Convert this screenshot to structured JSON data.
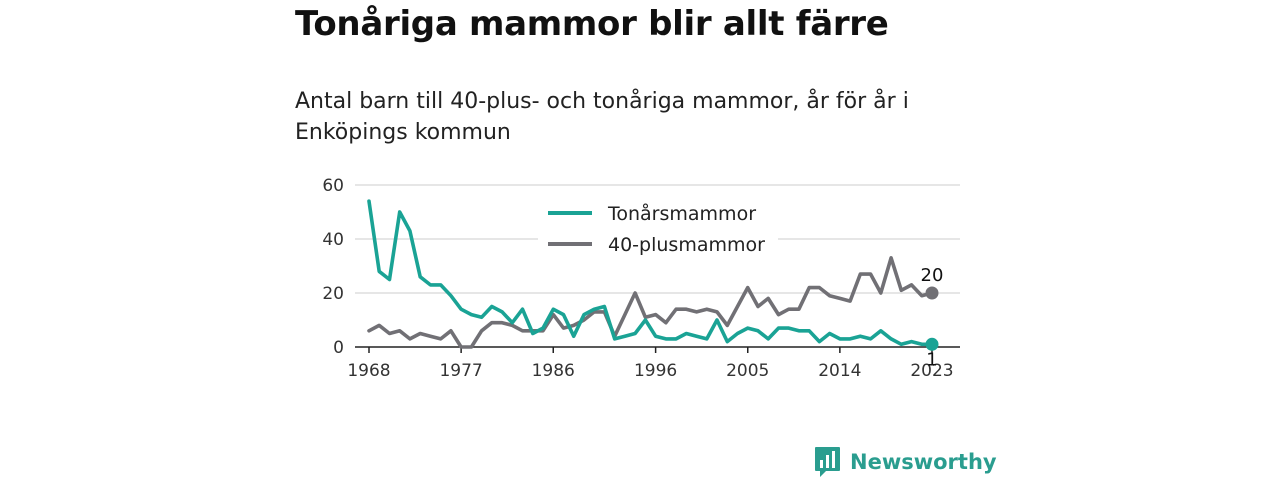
{
  "header": {
    "title": "Tonåriga mammor blir allt färre",
    "subtitle": "Antal barn till 40-plus- och tonåriga mammor, år för år i Enköpings kommun"
  },
  "brand": {
    "name": "Newsworthy",
    "icon": "bar-chart-bubble-icon"
  },
  "chart_data": {
    "type": "line",
    "title": "",
    "xlabel": "",
    "ylabel": "",
    "xlim": [
      1968,
      2023
    ],
    "ylim": [
      0,
      60
    ],
    "x_ticks": [
      "1968",
      "1977",
      "1986",
      "1996",
      "2005",
      "2014",
      "2023"
    ],
    "y_ticks": [
      "0",
      "20",
      "40",
      "60"
    ],
    "grid": "horizontal",
    "legend_position": "top-center",
    "x": [
      1968,
      1969,
      1970,
      1971,
      1972,
      1973,
      1974,
      1975,
      1976,
      1977,
      1978,
      1979,
      1980,
      1981,
      1982,
      1983,
      1984,
      1985,
      1986,
      1987,
      1988,
      1989,
      1990,
      1991,
      1992,
      1993,
      1994,
      1995,
      1996,
      1997,
      1998,
      1999,
      2000,
      2001,
      2002,
      2003,
      2004,
      2005,
      2006,
      2007,
      2008,
      2009,
      2010,
      2011,
      2012,
      2013,
      2014,
      2015,
      2016,
      2017,
      2018,
      2019,
      2020,
      2021,
      2022,
      2023
    ],
    "series": [
      {
        "name": "Tonårsmammor",
        "color": "#1aa395",
        "end_label": "1",
        "values": [
          54,
          28,
          25,
          50,
          43,
          26,
          23,
          23,
          19,
          14,
          12,
          11,
          15,
          13,
          9,
          14,
          5,
          7,
          14,
          12,
          4,
          12,
          14,
          15,
          3,
          4,
          5,
          10,
          4,
          3,
          3,
          5,
          4,
          3,
          10,
          2,
          5,
          7,
          6,
          3,
          7,
          7,
          6,
          6,
          2,
          5,
          3,
          3,
          4,
          3,
          6,
          3,
          1,
          2,
          1,
          1
        ]
      },
      {
        "name": "40-plusmammor",
        "color": "#717075",
        "end_label": "20",
        "values": [
          6,
          8,
          5,
          6,
          3,
          5,
          4,
          3,
          6,
          0,
          0,
          6,
          9,
          9,
          8,
          6,
          6,
          6,
          12,
          7,
          8,
          10,
          13,
          13,
          4,
          12,
          20,
          11,
          12,
          9,
          14,
          14,
          13,
          14,
          13,
          8,
          15,
          22,
          15,
          18,
          12,
          14,
          14,
          22,
          22,
          19,
          18,
          17,
          27,
          27,
          20,
          33,
          21,
          23,
          19,
          20
        ]
      }
    ]
  }
}
